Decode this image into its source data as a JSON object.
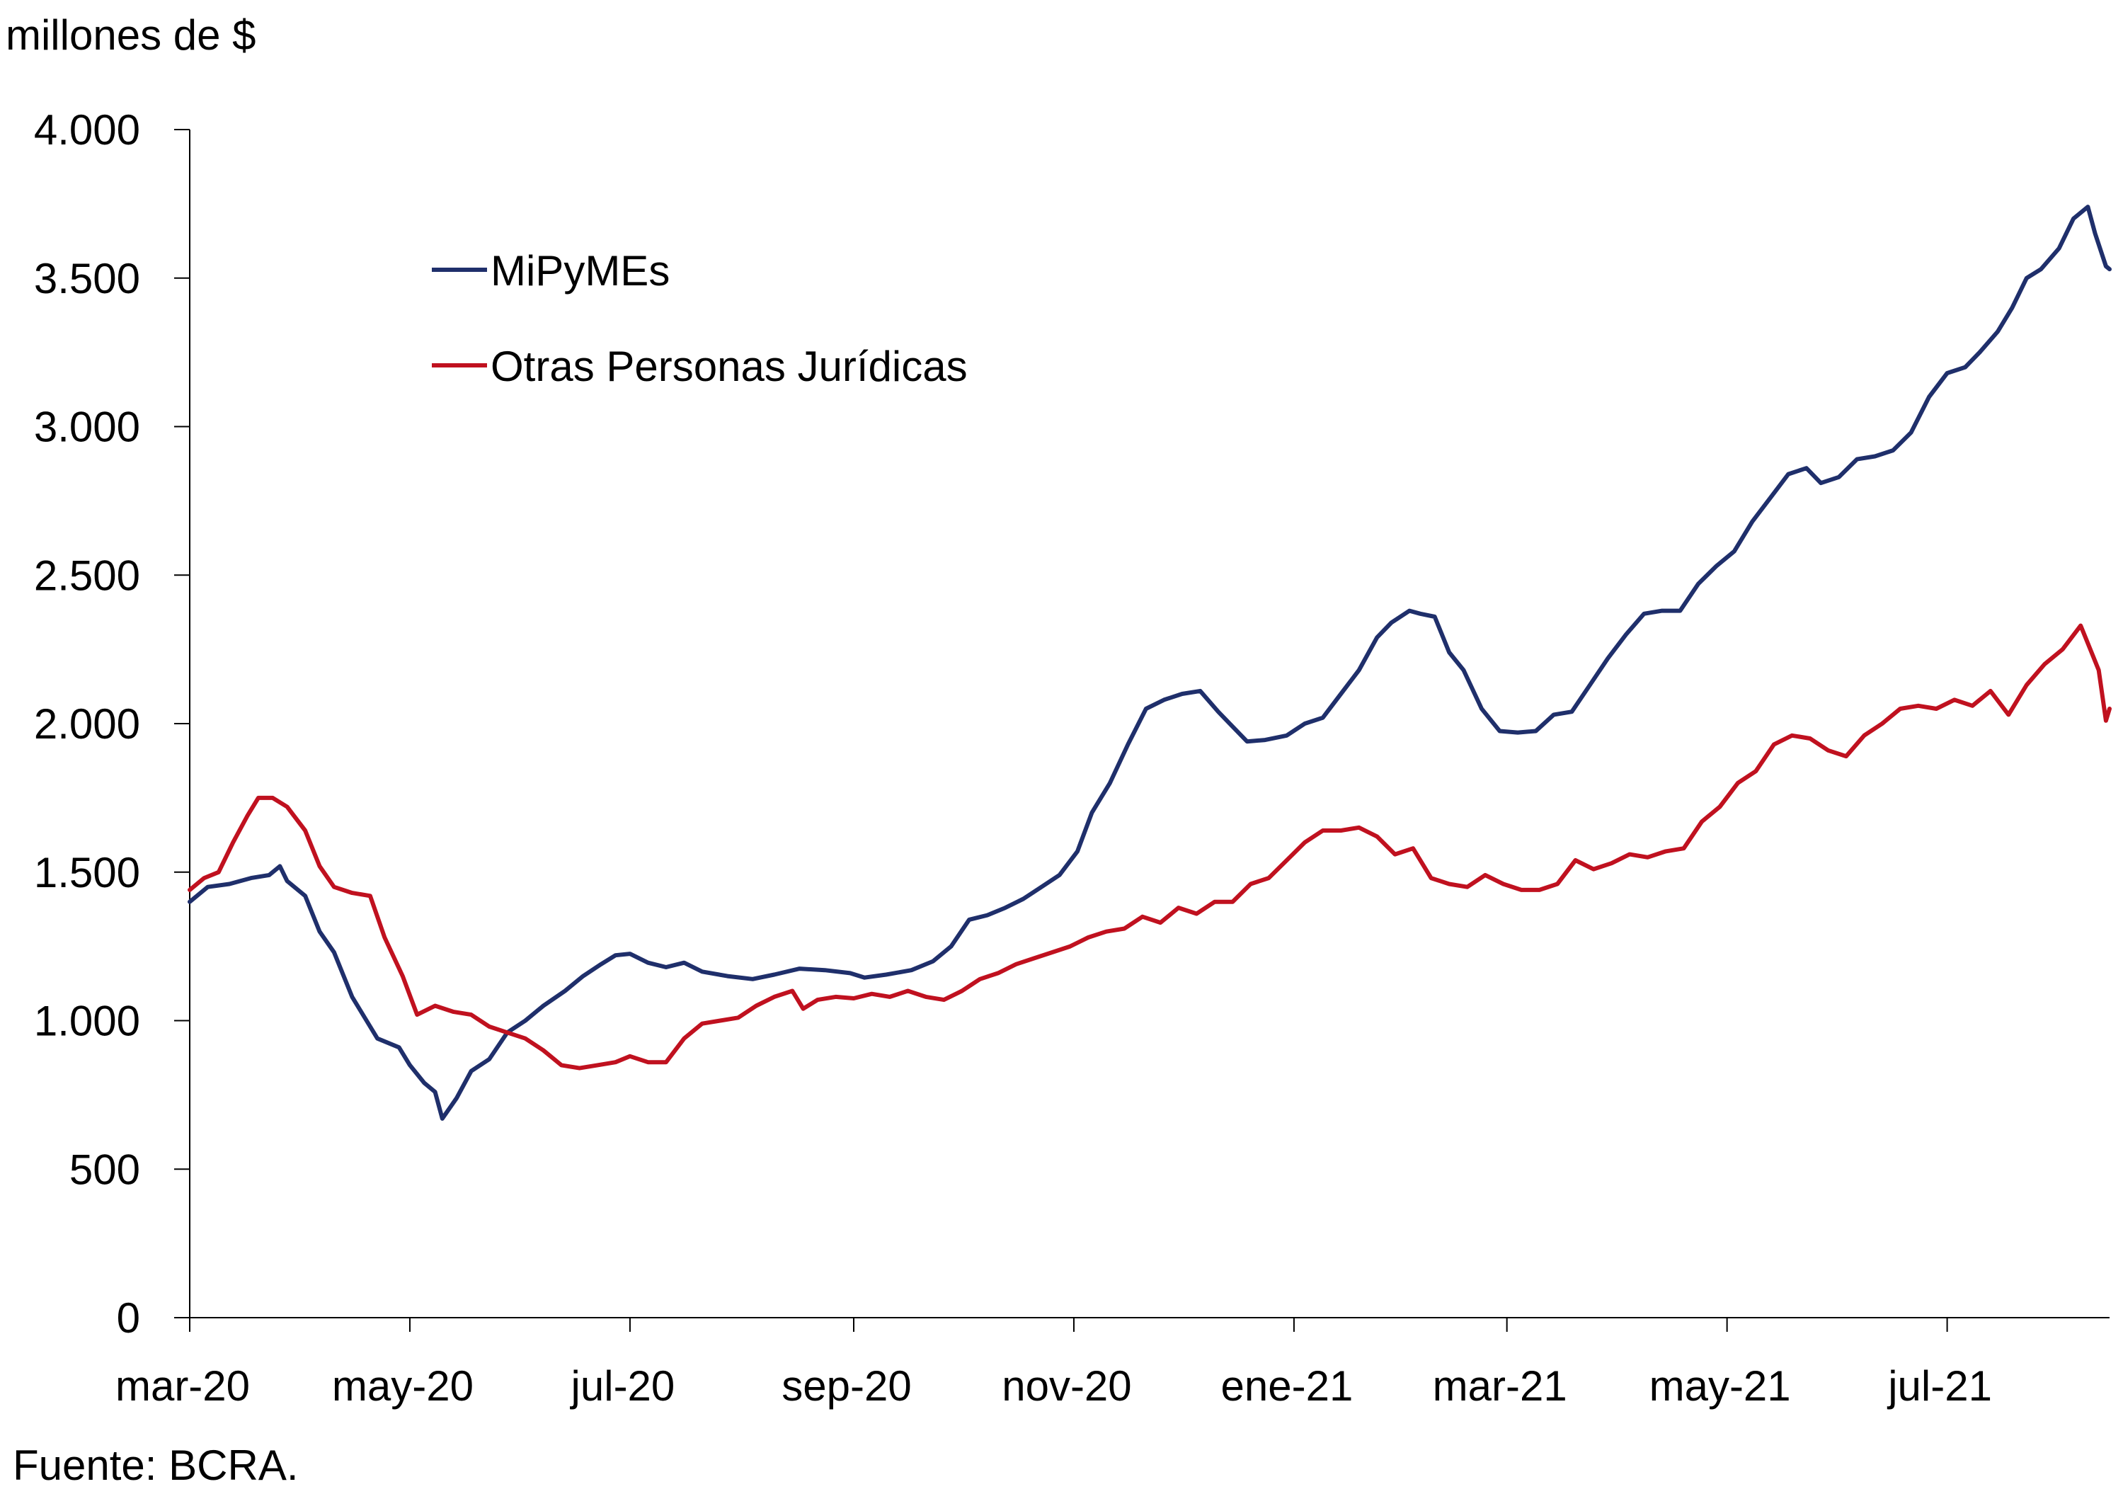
{
  "chart_data": {
    "type": "line",
    "ylabel": "millones de $",
    "source": "Fuente: BCRA.",
    "ylim": [
      0,
      4000
    ],
    "xlim": [
      "2020-03-01",
      "2021-08-15"
    ],
    "grid": false,
    "legend_position": "top-left",
    "y_ticks": [
      {
        "value": 0,
        "label": "0"
      },
      {
        "value": 500,
        "label": "500"
      },
      {
        "value": 1000,
        "label": "1.000"
      },
      {
        "value": 1500,
        "label": "1.500"
      },
      {
        "value": 2000,
        "label": "2.000"
      },
      {
        "value": 2500,
        "label": "2.500"
      },
      {
        "value": 3000,
        "label": "3.000"
      },
      {
        "value": 3500,
        "label": "3.500"
      },
      {
        "value": 4000,
        "label": "4.000"
      }
    ],
    "x_ticks": [
      {
        "date": "2020-03-01",
        "label": "mar-20"
      },
      {
        "date": "2020-05-01",
        "label": "may-20"
      },
      {
        "date": "2020-07-01",
        "label": "jul-20"
      },
      {
        "date": "2020-09-01",
        "label": "sep-20"
      },
      {
        "date": "2020-11-01",
        "label": "nov-20"
      },
      {
        "date": "2021-01-01",
        "label": "ene-21"
      },
      {
        "date": "2021-03-01",
        "label": "mar-21"
      },
      {
        "date": "2021-05-01",
        "label": "may-21"
      },
      {
        "date": "2021-07-01",
        "label": "jul-21"
      }
    ],
    "series": [
      {
        "name": "MiPyMEs",
        "color": "#1f2f6b",
        "points": [
          [
            "2020-03-01",
            1400
          ],
          [
            "2020-03-06",
            1450
          ],
          [
            "2020-03-12",
            1460
          ],
          [
            "2020-03-18",
            1480
          ],
          [
            "2020-03-23",
            1490
          ],
          [
            "2020-03-26",
            1520
          ],
          [
            "2020-03-28",
            1470
          ],
          [
            "2020-04-02",
            1420
          ],
          [
            "2020-04-06",
            1300
          ],
          [
            "2020-04-10",
            1230
          ],
          [
            "2020-04-15",
            1080
          ],
          [
            "2020-04-19",
            1000
          ],
          [
            "2020-04-22",
            940
          ],
          [
            "2020-04-28",
            910
          ],
          [
            "2020-05-01",
            850
          ],
          [
            "2020-05-05",
            790
          ],
          [
            "2020-05-08",
            760
          ],
          [
            "2020-05-10",
            670
          ],
          [
            "2020-05-14",
            740
          ],
          [
            "2020-05-18",
            830
          ],
          [
            "2020-05-23",
            870
          ],
          [
            "2020-05-28",
            960
          ],
          [
            "2020-06-02",
            1000
          ],
          [
            "2020-06-07",
            1050
          ],
          [
            "2020-06-13",
            1100
          ],
          [
            "2020-06-18",
            1150
          ],
          [
            "2020-06-23",
            1190
          ],
          [
            "2020-06-27",
            1220
          ],
          [
            "2020-07-01",
            1225
          ],
          [
            "2020-07-06",
            1195
          ],
          [
            "2020-07-11",
            1180
          ],
          [
            "2020-07-16",
            1195
          ],
          [
            "2020-07-21",
            1165
          ],
          [
            "2020-07-28",
            1150
          ],
          [
            "2020-08-04",
            1140
          ],
          [
            "2020-08-10",
            1155
          ],
          [
            "2020-08-17",
            1175
          ],
          [
            "2020-08-24",
            1170
          ],
          [
            "2020-08-31",
            1160
          ],
          [
            "2020-09-04",
            1145
          ],
          [
            "2020-09-10",
            1155
          ],
          [
            "2020-09-17",
            1170
          ],
          [
            "2020-09-23",
            1200
          ],
          [
            "2020-09-28",
            1250
          ],
          [
            "2020-10-03",
            1340
          ],
          [
            "2020-10-08",
            1355
          ],
          [
            "2020-10-13",
            1380
          ],
          [
            "2020-10-18",
            1410
          ],
          [
            "2020-10-23",
            1450
          ],
          [
            "2020-10-28",
            1490
          ],
          [
            "2020-11-02",
            1570
          ],
          [
            "2020-11-06",
            1700
          ],
          [
            "2020-11-11",
            1800
          ],
          [
            "2020-11-16",
            1930
          ],
          [
            "2020-11-21",
            2050
          ],
          [
            "2020-11-26",
            2080
          ],
          [
            "2020-12-01",
            2100
          ],
          [
            "2020-12-06",
            2110
          ],
          [
            "2020-12-11",
            2040
          ],
          [
            "2020-12-15",
            1990
          ],
          [
            "2020-12-19",
            1940
          ],
          [
            "2020-12-24",
            1945
          ],
          [
            "2020-12-30",
            1960
          ],
          [
            "2021-01-04",
            2000
          ],
          [
            "2021-01-09",
            2020
          ],
          [
            "2021-01-14",
            2100
          ],
          [
            "2021-01-19",
            2180
          ],
          [
            "2021-01-24",
            2290
          ],
          [
            "2021-01-28",
            2340
          ],
          [
            "2021-02-02",
            2380
          ],
          [
            "2021-02-05",
            2370
          ],
          [
            "2021-02-09",
            2360
          ],
          [
            "2021-02-13",
            2240
          ],
          [
            "2021-02-17",
            2180
          ],
          [
            "2021-02-22",
            2050
          ],
          [
            "2021-02-27",
            1975
          ],
          [
            "2021-03-04",
            1970
          ],
          [
            "2021-03-09",
            1975
          ],
          [
            "2021-03-14",
            2030
          ],
          [
            "2021-03-19",
            2040
          ],
          [
            "2021-03-24",
            2130
          ],
          [
            "2021-03-29",
            2220
          ],
          [
            "2021-04-03",
            2300
          ],
          [
            "2021-04-08",
            2370
          ],
          [
            "2021-04-13",
            2380
          ],
          [
            "2021-04-18",
            2380
          ],
          [
            "2021-04-23",
            2470
          ],
          [
            "2021-04-28",
            2530
          ],
          [
            "2021-05-03",
            2580
          ],
          [
            "2021-05-08",
            2680
          ],
          [
            "2021-05-13",
            2760
          ],
          [
            "2021-05-18",
            2840
          ],
          [
            "2021-05-23",
            2860
          ],
          [
            "2021-05-27",
            2810
          ],
          [
            "2021-06-01",
            2830
          ],
          [
            "2021-06-06",
            2890
          ],
          [
            "2021-06-11",
            2900
          ],
          [
            "2021-06-16",
            2920
          ],
          [
            "2021-06-21",
            2980
          ],
          [
            "2021-06-26",
            3100
          ],
          [
            "2021-07-01",
            3180
          ],
          [
            "2021-07-06",
            3200
          ],
          [
            "2021-07-10",
            3250
          ],
          [
            "2021-07-15",
            3320
          ],
          [
            "2021-07-19",
            3400
          ],
          [
            "2021-07-23",
            3500
          ],
          [
            "2021-07-27",
            3530
          ],
          [
            "2021-08-01",
            3600
          ],
          [
            "2021-08-05",
            3700
          ],
          [
            "2021-08-09",
            3740
          ],
          [
            "2021-08-11",
            3650
          ],
          [
            "2021-08-14",
            3540
          ],
          [
            "2021-08-15",
            3530
          ]
        ]
      },
      {
        "name": "Otras Personas Jurídicas",
        "color": "#c0111f",
        "points": [
          [
            "2020-03-01",
            1440
          ],
          [
            "2020-03-05",
            1480
          ],
          [
            "2020-03-09",
            1500
          ],
          [
            "2020-03-13",
            1600
          ],
          [
            "2020-03-17",
            1690
          ],
          [
            "2020-03-20",
            1750
          ],
          [
            "2020-03-24",
            1750
          ],
          [
            "2020-03-28",
            1720
          ],
          [
            "2020-04-02",
            1640
          ],
          [
            "2020-04-06",
            1520
          ],
          [
            "2020-04-10",
            1450
          ],
          [
            "2020-04-15",
            1430
          ],
          [
            "2020-04-20",
            1420
          ],
          [
            "2020-04-24",
            1280
          ],
          [
            "2020-04-29",
            1150
          ],
          [
            "2020-05-03",
            1020
          ],
          [
            "2020-05-08",
            1050
          ],
          [
            "2020-05-13",
            1030
          ],
          [
            "2020-05-18",
            1020
          ],
          [
            "2020-05-23",
            980
          ],
          [
            "2020-05-28",
            960
          ],
          [
            "2020-06-02",
            940
          ],
          [
            "2020-06-07",
            900
          ],
          [
            "2020-06-12",
            850
          ],
          [
            "2020-06-17",
            840
          ],
          [
            "2020-06-22",
            850
          ],
          [
            "2020-06-27",
            860
          ],
          [
            "2020-07-01",
            880
          ],
          [
            "2020-07-06",
            860
          ],
          [
            "2020-07-11",
            860
          ],
          [
            "2020-07-16",
            940
          ],
          [
            "2020-07-21",
            990
          ],
          [
            "2020-07-26",
            1000
          ],
          [
            "2020-07-31",
            1010
          ],
          [
            "2020-08-05",
            1050
          ],
          [
            "2020-08-10",
            1080
          ],
          [
            "2020-08-15",
            1100
          ],
          [
            "2020-08-18",
            1040
          ],
          [
            "2020-08-22",
            1070
          ],
          [
            "2020-08-27",
            1080
          ],
          [
            "2020-09-01",
            1075
          ],
          [
            "2020-09-06",
            1090
          ],
          [
            "2020-09-11",
            1080
          ],
          [
            "2020-09-16",
            1100
          ],
          [
            "2020-09-21",
            1080
          ],
          [
            "2020-09-26",
            1070
          ],
          [
            "2020-10-01",
            1100
          ],
          [
            "2020-10-06",
            1140
          ],
          [
            "2020-10-11",
            1160
          ],
          [
            "2020-10-16",
            1190
          ],
          [
            "2020-10-21",
            1210
          ],
          [
            "2020-10-26",
            1230
          ],
          [
            "2020-10-31",
            1250
          ],
          [
            "2020-11-05",
            1280
          ],
          [
            "2020-11-10",
            1300
          ],
          [
            "2020-11-15",
            1310
          ],
          [
            "2020-11-20",
            1350
          ],
          [
            "2020-11-25",
            1330
          ],
          [
            "2020-11-30",
            1380
          ],
          [
            "2020-12-05",
            1360
          ],
          [
            "2020-12-10",
            1400
          ],
          [
            "2020-12-15",
            1400
          ],
          [
            "2020-12-20",
            1460
          ],
          [
            "2020-12-25",
            1480
          ],
          [
            "2020-12-30",
            1540
          ],
          [
            "2021-01-04",
            1600
          ],
          [
            "2021-01-09",
            1640
          ],
          [
            "2021-01-14",
            1640
          ],
          [
            "2021-01-19",
            1650
          ],
          [
            "2021-01-24",
            1620
          ],
          [
            "2021-01-29",
            1560
          ],
          [
            "2021-02-03",
            1580
          ],
          [
            "2021-02-08",
            1480
          ],
          [
            "2021-02-13",
            1460
          ],
          [
            "2021-02-18",
            1450
          ],
          [
            "2021-02-23",
            1490
          ],
          [
            "2021-02-28",
            1460
          ],
          [
            "2021-03-05",
            1440
          ],
          [
            "2021-03-10",
            1440
          ],
          [
            "2021-03-15",
            1460
          ],
          [
            "2021-03-20",
            1540
          ],
          [
            "2021-03-25",
            1510
          ],
          [
            "2021-03-30",
            1530
          ],
          [
            "2021-04-04",
            1560
          ],
          [
            "2021-04-09",
            1550
          ],
          [
            "2021-04-14",
            1570
          ],
          [
            "2021-04-19",
            1580
          ],
          [
            "2021-04-24",
            1670
          ],
          [
            "2021-04-29",
            1720
          ],
          [
            "2021-05-04",
            1800
          ],
          [
            "2021-05-09",
            1840
          ],
          [
            "2021-05-14",
            1930
          ],
          [
            "2021-05-19",
            1960
          ],
          [
            "2021-05-24",
            1950
          ],
          [
            "2021-05-29",
            1910
          ],
          [
            "2021-06-03",
            1890
          ],
          [
            "2021-06-08",
            1960
          ],
          [
            "2021-06-13",
            2000
          ],
          [
            "2021-06-18",
            2050
          ],
          [
            "2021-06-23",
            2060
          ],
          [
            "2021-06-28",
            2050
          ],
          [
            "2021-07-03",
            2080
          ],
          [
            "2021-07-08",
            2060
          ],
          [
            "2021-07-13",
            2110
          ],
          [
            "2021-07-18",
            2030
          ],
          [
            "2021-07-23",
            2130
          ],
          [
            "2021-07-28",
            2200
          ],
          [
            "2021-08-02",
            2250
          ],
          [
            "2021-08-07",
            2330
          ],
          [
            "2021-08-10",
            2240
          ],
          [
            "2021-08-12",
            2180
          ],
          [
            "2021-08-14",
            2010
          ],
          [
            "2021-08-15",
            2050
          ]
        ]
      }
    ]
  }
}
